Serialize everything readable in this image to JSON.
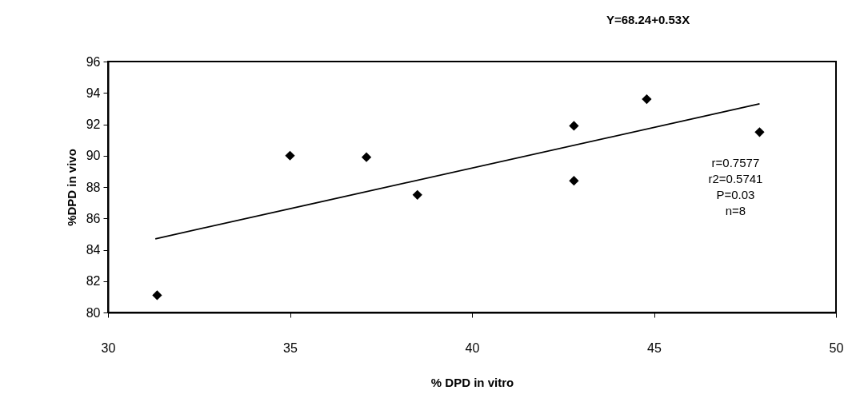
{
  "chart_data": {
    "type": "scatter",
    "title": "Y=68.24+0.53X",
    "xlabel": "% DPD in vitro",
    "ylabel": "%DPD in vivo",
    "xlim": [
      30,
      50
    ],
    "xticks": [
      30,
      35,
      40,
      45,
      50
    ],
    "ylim": [
      80,
      96
    ],
    "yticks": [
      80,
      82,
      84,
      86,
      88,
      90,
      92,
      94,
      96
    ],
    "grid": false,
    "marker": "diamond",
    "series": [
      {
        "color": "#000000",
        "x": [
          31.35,
          35.0,
          37.1,
          38.5,
          42.8,
          42.8,
          44.8,
          47.9
        ],
        "values": [
          81.1,
          90.0,
          89.9,
          87.5,
          91.9,
          88.4,
          93.6,
          91.5
        ]
      },
      {
        "type": "line",
        "color": "#000000",
        "marker": "none",
        "line_style": "solid",
        "x": [
          31.3,
          47.9
        ],
        "values": [
          84.7,
          93.3
        ]
      }
    ],
    "annotations": [
      "r=0.7577",
      "r2=0.5741",
      "P=0.03",
      "n=8"
    ]
  }
}
